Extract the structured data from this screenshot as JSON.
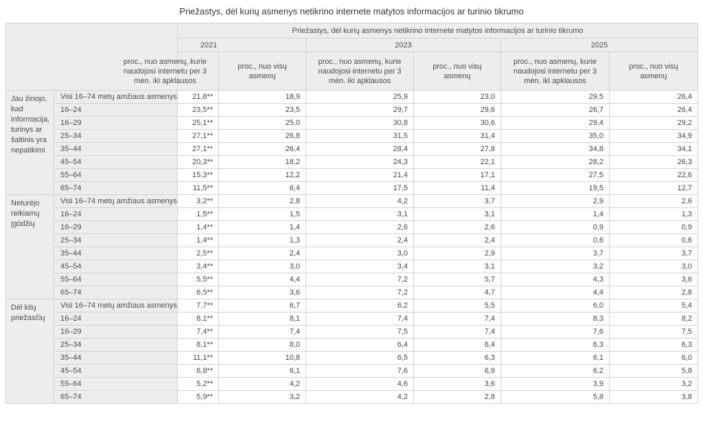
{
  "page_title": "Priežastys, dėl kurių asmenys netikrino internete matytos informacijos ar turinio tikrumo",
  "colors": {
    "header_background": "#ededed",
    "border": "#d2d2d2",
    "text": "#4b4b4b"
  },
  "chart_data": {
    "type": "table",
    "title": "Priežastys, dėl kurių asmenys netikrino internete matytos informacijos ar turinio tikrumo",
    "spanning_header": "Priežastys, dėl kurių asmenys netikrino internete matytos informacijos ar turinio tikrumo",
    "column_groups": [
      {
        "year": "2021",
        "col_users": "proc., nuo asmenų, kurie naudojosi internetu per 3 mėn. iki apklausos",
        "col_all": "proc., nuo visų asmenų"
      },
      {
        "year": "2023",
        "col_users": "proc., nuo asmenų, kurie naudojosi internetu per 3 mėn. iki apklausos",
        "col_all": "proc., nuo visų asmenų"
      },
      {
        "year": "2025",
        "col_users": "proc., nuo asmenų, kurie naudojosi internetu per 3 mėn. iki apklausos",
        "col_all": "proc., nuo visų asmenų"
      }
    ],
    "row_groups": [
      {
        "label": "Jau žinojo, kad informacija, turinys ar šaltinis yra nepatikimi",
        "rows": [
          {
            "age": "Visi 16–74 metų amžiaus asmenys",
            "values": [
              "21,8**",
              "18,9",
              "25,9",
              "23,0",
              "29,5",
              "26,4"
            ]
          },
          {
            "age": "16–24",
            "values": [
              "23,5**",
              "23,5",
              "29,7",
              "29,6",
              "26,7",
              "26,4"
            ]
          },
          {
            "age": "16–29",
            "values": [
              "25,1**",
              "25,0",
              "30,8",
              "30,6",
              "29,4",
              "29,2"
            ]
          },
          {
            "age": "25–34",
            "values": [
              "27,1**",
              "26,8",
              "31,5",
              "31,4",
              "35,0",
              "34,9"
            ]
          },
          {
            "age": "35–44",
            "values": [
              "27,1**",
              "26,4",
              "28,4",
              "27,8",
              "34,8",
              "34,1"
            ]
          },
          {
            "age": "45–54",
            "values": [
              "20,3**",
              "18,2",
              "24,3",
              "22,1",
              "28,2",
              "26,3"
            ]
          },
          {
            "age": "55–64",
            "values": [
              "15,3**",
              "12,2",
              "21,4",
              "17,1",
              "27,5",
              "22,6"
            ]
          },
          {
            "age": "65–74",
            "values": [
              "11,5**",
              "6,4",
              "17,5",
              "11,4",
              "19,5",
              "12,7"
            ]
          }
        ]
      },
      {
        "label": "Neturėjo reikiamų įgūdžių",
        "rows": [
          {
            "age": "Visi 16–74 metų amžiaus asmenys",
            "values": [
              "3,2**",
              "2,8",
              "4,2",
              "3,7",
              "2,9",
              "2,6"
            ]
          },
          {
            "age": "16–24",
            "values": [
              "1,5**",
              "1,5",
              "3,1",
              "3,1",
              "1,4",
              "1,3"
            ]
          },
          {
            "age": "16–29",
            "values": [
              "1,4**",
              "1,4",
              "2,6",
              "2,6",
              "0,9",
              "0,9"
            ]
          },
          {
            "age": "25–34",
            "values": [
              "1,4**",
              "1,3",
              "2,4",
              "2,4",
              "0,6",
              "0,6"
            ]
          },
          {
            "age": "35–44",
            "values": [
              "2,5**",
              "2,4",
              "3,0",
              "2,9",
              "3,7",
              "3,7"
            ]
          },
          {
            "age": "45–54",
            "values": [
              "3,4**",
              "3,0",
              "3,4",
              "3,1",
              "3,2",
              "3,0"
            ]
          },
          {
            "age": "55–64",
            "values": [
              "5,5**",
              "4,4",
              "7,2",
              "5,7",
              "4,3",
              "3,6"
            ]
          },
          {
            "age": "65–74",
            "values": [
              "6,5**",
              "3,6",
              "7,2",
              "4,7",
              "4,4",
              "2,8"
            ]
          }
        ]
      },
      {
        "label": "Dėl kitų priežasčių",
        "rows": [
          {
            "age": "Visi 16–74 metų amžiaus asmenys",
            "values": [
              "7,7**",
              "6,7",
              "6,2",
              "5,5",
              "6,0",
              "5,4"
            ]
          },
          {
            "age": "16–24",
            "values": [
              "8,1**",
              "8,1",
              "7,4",
              "7,4",
              "8,3",
              "8,2"
            ]
          },
          {
            "age": "16–29",
            "values": [
              "7,4**",
              "7,4",
              "7,5",
              "7,4",
              "7,6",
              "7,5"
            ]
          },
          {
            "age": "25–34",
            "values": [
              "8,1**",
              "8,0",
              "6,4",
              "6,4",
              "6,3",
              "6,3"
            ]
          },
          {
            "age": "35–44",
            "values": [
              "11,1**",
              "10,8",
              "6,5",
              "6,3",
              "6,1",
              "6,0"
            ]
          },
          {
            "age": "45–54",
            "values": [
              "6,8**",
              "6,1",
              "7,6",
              "6,9",
              "6,2",
              "5,8"
            ]
          },
          {
            "age": "55–64",
            "values": [
              "5,2**",
              "4,2",
              "4,6",
              "3,6",
              "3,9",
              "3,2"
            ]
          },
          {
            "age": "65–74",
            "values": [
              "5,9**",
              "3,2",
              "4,2",
              "2,8",
              "5,8",
              "3,8"
            ]
          }
        ]
      }
    ]
  }
}
